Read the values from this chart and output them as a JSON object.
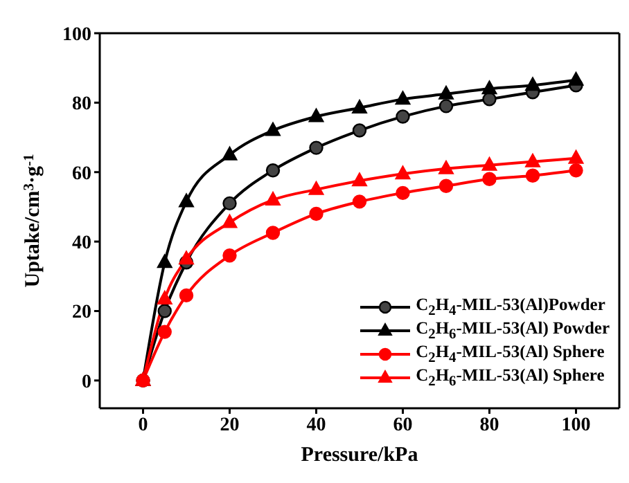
{
  "chart_data": {
    "type": "line",
    "xlabel": "Pressure/kPa",
    "ylabel": "Uptake/cm$^{3}$·g$^{-1}$",
    "x": [
      0,
      5,
      10,
      20,
      30,
      40,
      50,
      60,
      70,
      80,
      90,
      100
    ],
    "xlim": [
      -10,
      110
    ],
    "xticks": [
      0,
      20,
      40,
      60,
      80,
      100
    ],
    "ylim": [
      -8,
      100
    ],
    "yticks": [
      0,
      20,
      40,
      60,
      80,
      100
    ],
    "grid": false,
    "legend": "bottom right",
    "line_style": "solid",
    "series": [
      {
        "name": "C$_{2}$H$_{4}$-MIL-53(Al)Powder",
        "color": "#000000",
        "marker": "circle",
        "values": [
          0,
          20,
          34,
          51,
          60.5,
          67,
          72,
          76,
          79,
          81,
          83,
          85
        ]
      },
      {
        "name": "C$_{2}$H$_{6}$-MIL-53(Al) Powder",
        "color": "#000000",
        "marker": "triangle",
        "values": [
          0,
          34,
          51.5,
          65,
          72,
          76,
          78.5,
          81,
          82.5,
          84,
          85,
          86.5
        ]
      },
      {
        "name": "C$_{2}$H$_{4}$-MIL-53(Al) Sphere",
        "color": "#ff0000",
        "marker": "circle",
        "values": [
          0,
          14,
          24.5,
          36,
          42.5,
          48,
          51.5,
          54,
          56,
          58,
          59,
          60.5
        ]
      },
      {
        "name": "C$_{2}$H$_{6}$-MIL-53(Al) Sphere",
        "color": "#ff0000",
        "marker": "triangle",
        "values": [
          0,
          23.5,
          35,
          45.5,
          52,
          55,
          57.5,
          59.5,
          61,
          62,
          63,
          64
        ]
      }
    ]
  }
}
